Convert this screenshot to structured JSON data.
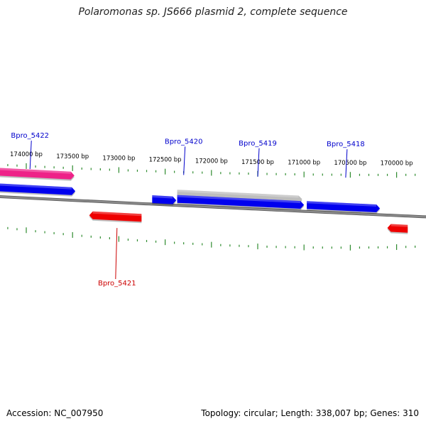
{
  "title": "Polaromonas sp. JS666 plasmid 2, complete sequence",
  "footer": {
    "accession": "Accession: NC_007950",
    "summary": "Topology: circular; Length: 338,007 bp; Genes: 310"
  },
  "colors": {
    "background": "#ffffff",
    "backbone": "#8c8c8c",
    "tick": "#2e8b2e",
    "forward_gene": "#0000ee",
    "reverse_gene": "#ee0000",
    "highlight_gene": "#ee2288",
    "neutral_gene": "#bdbdbd",
    "forward_label": "#0000cc",
    "reverse_label": "#cc0000"
  },
  "ruler": {
    "unit": "bp",
    "labels": [
      {
        "bp": 174000,
        "text": "174000 bp"
      },
      {
        "bp": 173500,
        "text": "173500 bp"
      },
      {
        "bp": 173000,
        "text": "173000 bp"
      },
      {
        "bp": 172500,
        "text": "172500 bp"
      },
      {
        "bp": 172000,
        "text": "172000 bp"
      },
      {
        "bp": 171500,
        "text": "171500 bp"
      },
      {
        "bp": 171000,
        "text": "171000 bp"
      },
      {
        "bp": 170500,
        "text": "170500 bp"
      },
      {
        "bp": 170000,
        "text": "170000 bp"
      }
    ]
  },
  "genes": [
    {
      "id": "g-pink",
      "strand": "+",
      "color": "highlight_gene",
      "start": 173480,
      "end": 174300
    },
    {
      "id": "g-blue-left",
      "strand": "+",
      "color": "forward_gene",
      "start": 173470,
      "end": 174300
    },
    {
      "id": "g-red-5421",
      "strand": "-",
      "color": "reverse_gene",
      "start": 172755,
      "end": 173320
    },
    {
      "id": "g-blue-small",
      "strand": "+",
      "color": "forward_gene",
      "start": 172380,
      "end": 172640
    },
    {
      "id": "g-grey",
      "strand": "+",
      "color": "neutral_gene",
      "start": 171020,
      "end": 172370
    },
    {
      "id": "g-blue-long",
      "strand": "+",
      "color": "forward_gene",
      "start": 171000,
      "end": 172370
    },
    {
      "id": "g-blue-5418",
      "strand": "+",
      "color": "forward_gene",
      "start": 170180,
      "end": 170970
    },
    {
      "id": "g-red-right",
      "strand": "-",
      "color": "reverse_gene",
      "start": 169880,
      "end": 170100
    }
  ],
  "gene_labels": [
    {
      "text": "Bpro_5422",
      "strand": "+",
      "bp": 173960
    },
    {
      "text": "Bpro_5420",
      "strand": "+",
      "bp": 172300
    },
    {
      "text": "Bpro_5419",
      "strand": "+",
      "bp": 171500
    },
    {
      "text": "Bpro_5418",
      "strand": "+",
      "bp": 170550
    },
    {
      "text": "Bpro_5421",
      "strand": "-",
      "bp": 173020
    }
  ]
}
